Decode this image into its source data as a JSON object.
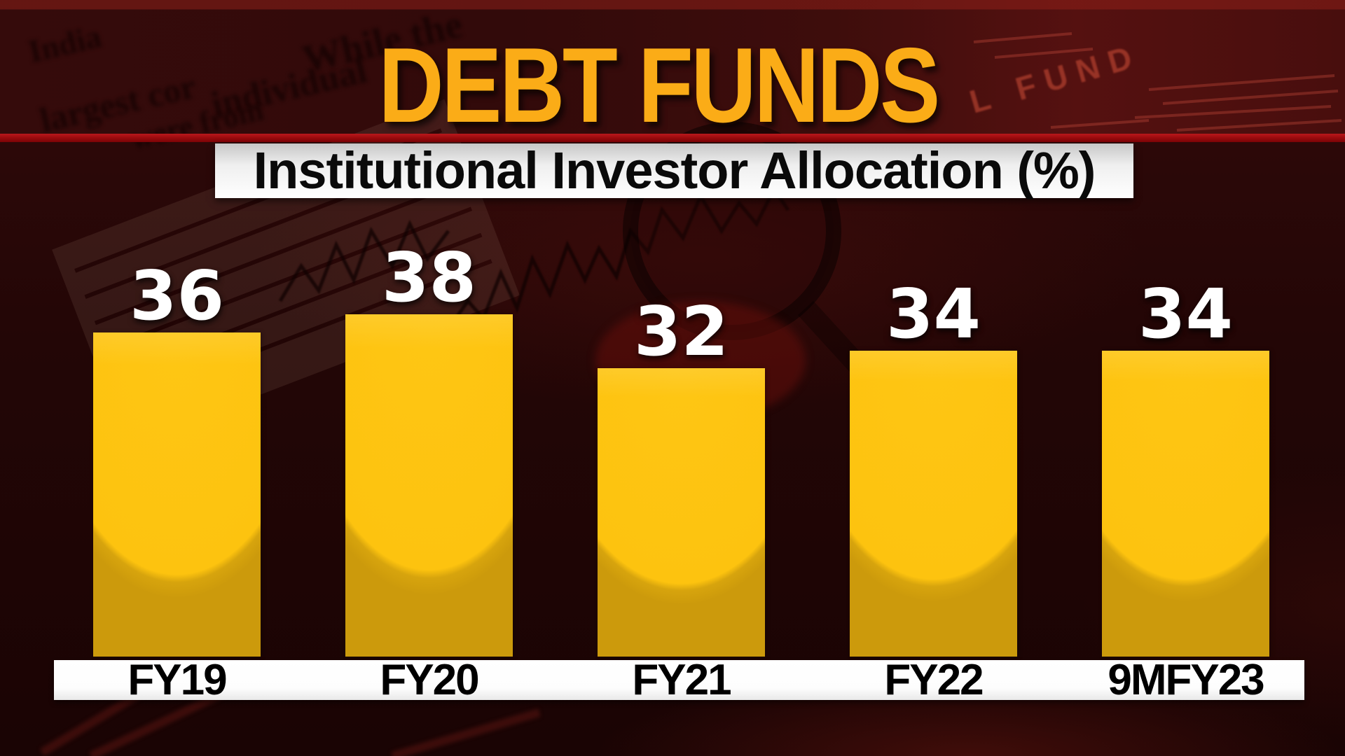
{
  "title": "DEBT FUNDS",
  "subtitle": "Institutional Investor Allocation (%)",
  "chart_data": {
    "type": "bar",
    "categories": [
      "FY19",
      "FY20",
      "FY21",
      "FY22",
      "9MFY23"
    ],
    "values": [
      36,
      38,
      32,
      34,
      34
    ],
    "title": "DEBT FUNDS",
    "subtitle": "Institutional Investor Allocation (%)",
    "xlabel": "",
    "ylabel": "Institutional investor allocation (%)",
    "ylim": [
      0,
      40
    ],
    "grid": false,
    "legend": false,
    "value_label_position": "above bars",
    "bar_color": "#FDC30F",
    "bar_shade_color": "#D2A00D",
    "value_label_color": "#FFFFFF",
    "category_label_color": "#000000",
    "category_strip_color": "#FFFFFF"
  },
  "colors": {
    "background": "#220606",
    "top_band": "#3A0C0C",
    "title_text": "#FBAC17",
    "divider_line": "#9E0C0F",
    "subtitle_bg": "#FFFFFF",
    "subtitle_text": "#0A0A0A",
    "bar_yellow": "#FDC30F"
  },
  "background_texture": {
    "newspaper_words": [
      "While the",
      "individual",
      "largest cor",
      "were from",
      "India",
      "L FUND"
    ]
  }
}
